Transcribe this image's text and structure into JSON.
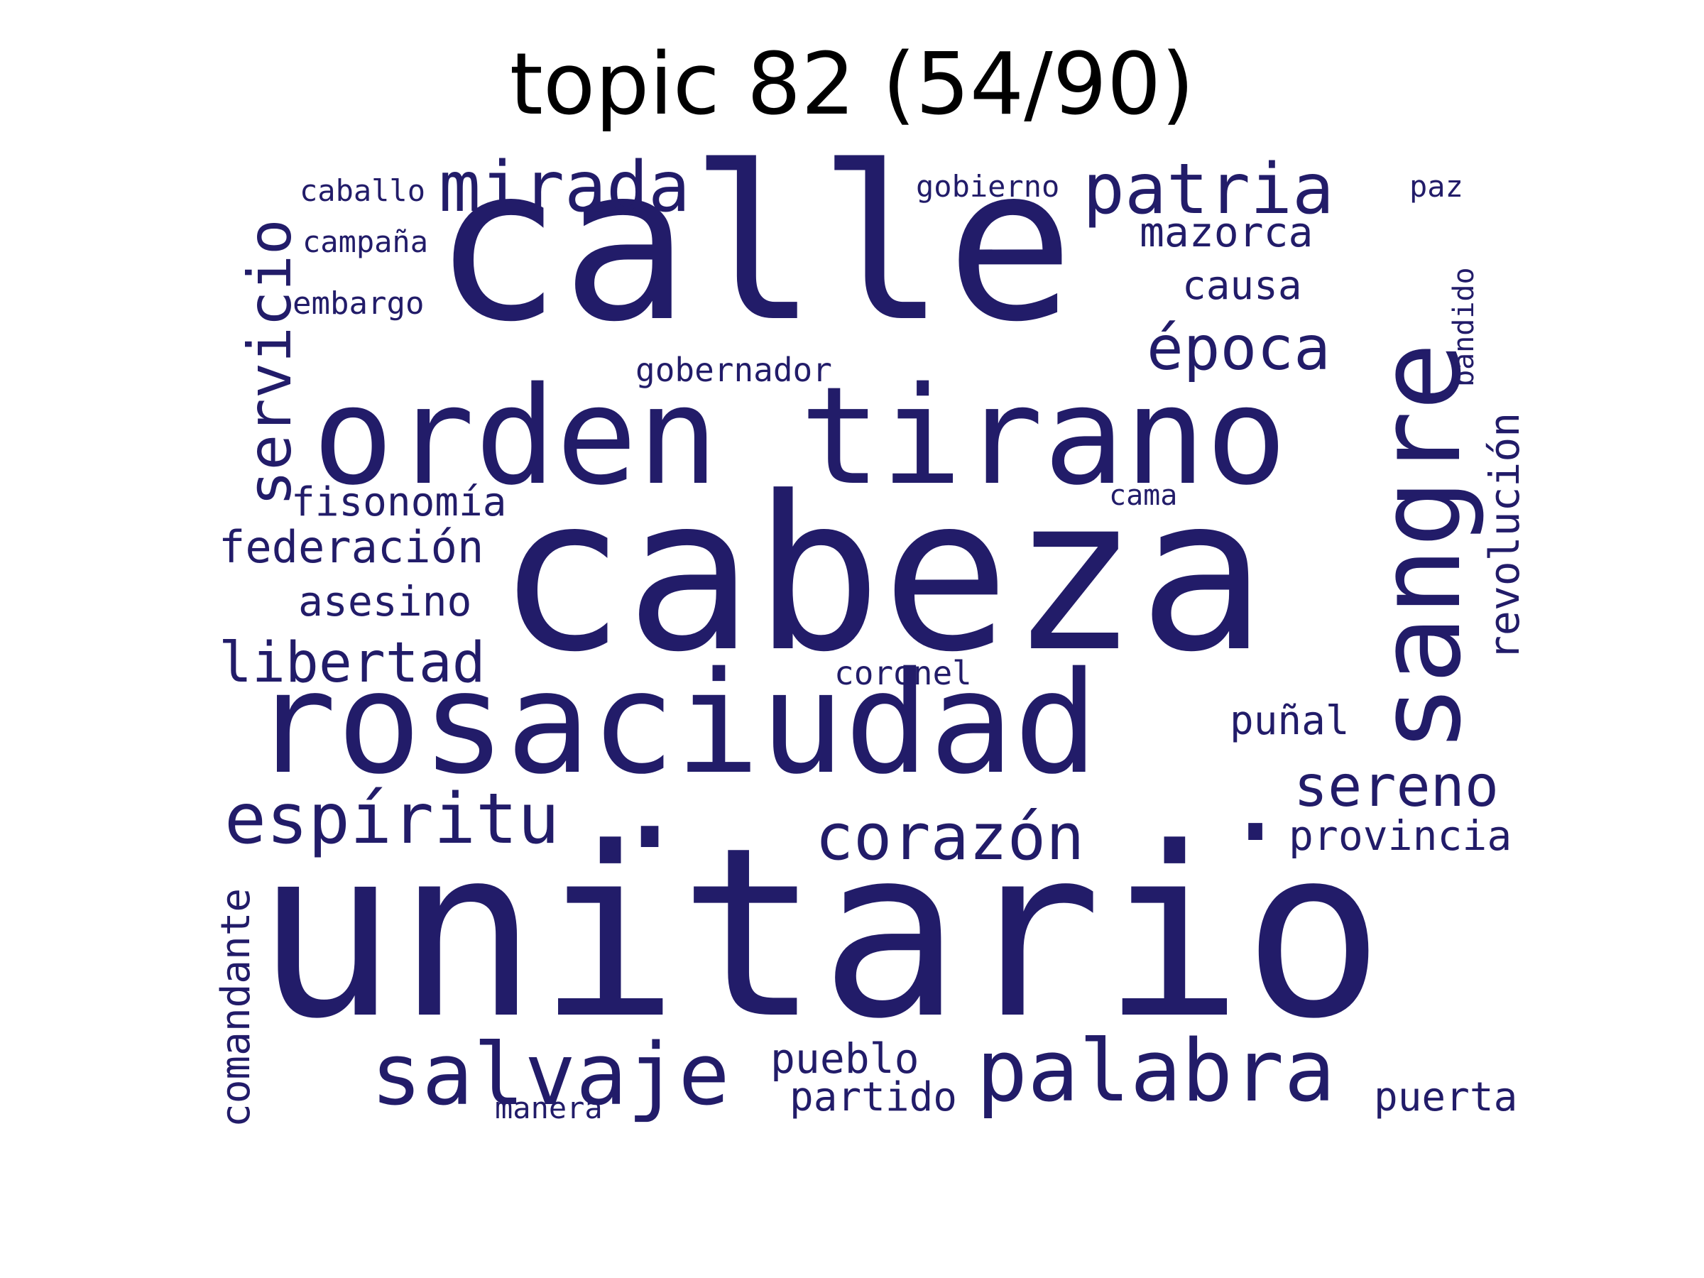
{
  "title": "topic 82 (54/90)",
  "colors": {
    "word": "#221c69",
    "background": "#ffffff",
    "title": "#000000"
  },
  "words": {
    "unitario": "unitario",
    "cabeza": "cabeza",
    "calle": "calle",
    "rosaciudad": "rosaciudad",
    "orden_tirano": "orden tirano",
    "sangre": "sangre",
    "salvaje": "salvaje",
    "palabra": "palabra",
    "mirada": "mirada",
    "patria": "patria",
    "espiritu": "espíritu",
    "corazon": "corazón",
    "servicio": "servicio",
    "epoca": "época",
    "sereno": "sereno",
    "libertad": "libertad",
    "federacion": "federación",
    "revolucion": "revolución",
    "fisonomia": "fisonomía",
    "asesino": "asesino",
    "mazorca": "mazorca",
    "comandante": "comandante",
    "provincia": "provincia",
    "pueblo": "pueblo",
    "punal": "puñal",
    "causa": "causa",
    "partido": "partido",
    "puerta": "puerta",
    "gobernador": "gobernador",
    "coronel": "coronel",
    "embargo": "embargo",
    "caballo": "caballo",
    "campana": "campaña",
    "gobierno": "gobierno",
    "bandido": "bandido",
    "cama": "cama",
    "manera": "manera",
    "paz": "paz",
    "dot_1": ".",
    "dot_2": "."
  }
}
